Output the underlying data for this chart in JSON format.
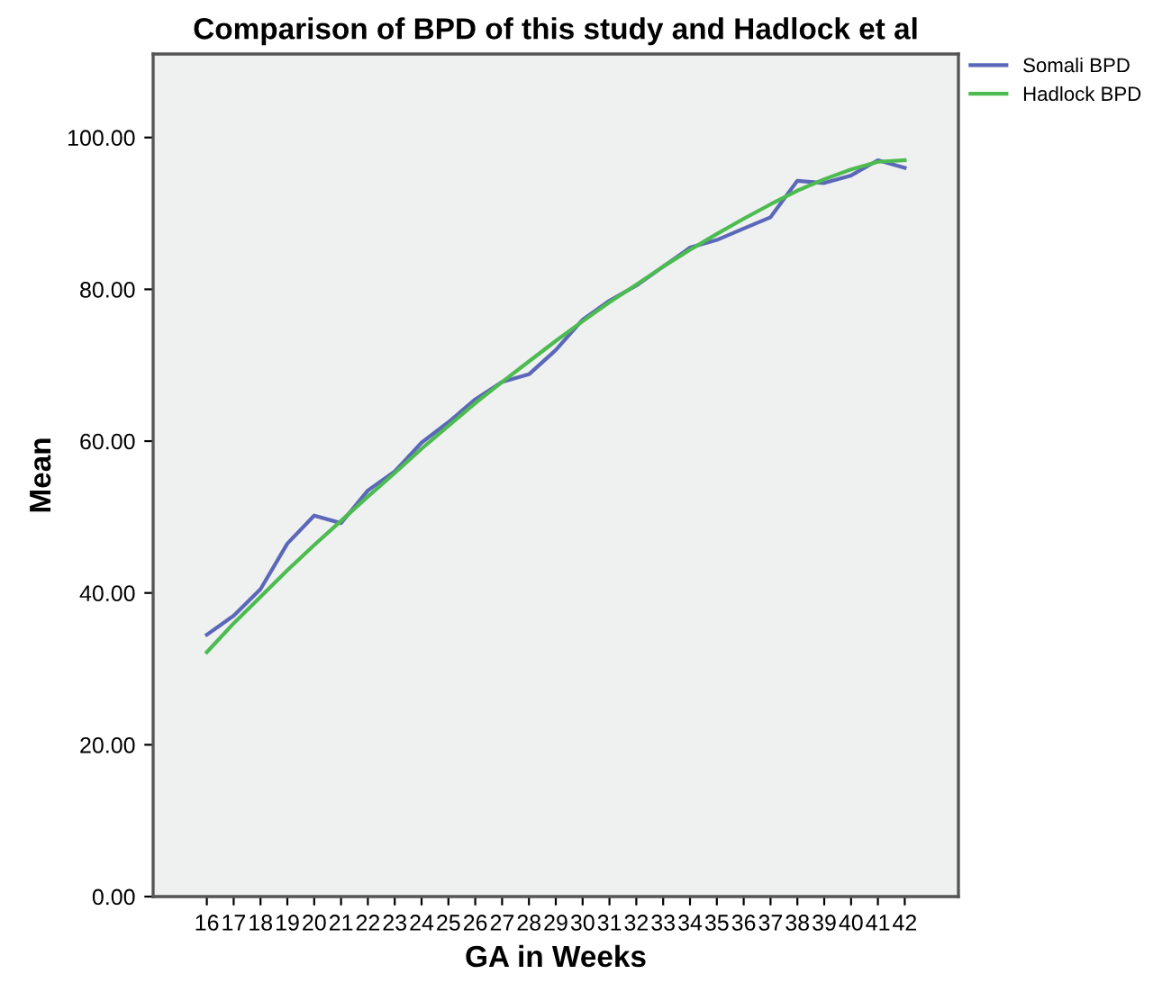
{
  "chart_data": {
    "type": "line",
    "title": "Comparison of BPD of this study and Hadlock et al",
    "xlabel": "GA in Weeks",
    "ylabel": "Mean",
    "categories": [
      "16",
      "17",
      "18",
      "19",
      "20",
      "21",
      "22",
      "23",
      "24",
      "25",
      "26",
      "27",
      "28",
      "29",
      "30",
      "31",
      "32",
      "33",
      "34",
      "35",
      "36",
      "37",
      "38",
      "39",
      "40",
      "41",
      "42"
    ],
    "series": [
      {
        "name": "Somali BPD",
        "color": "#5b67b8",
        "values": [
          34.5,
          37,
          40.5,
          46.5,
          50.2,
          49.2,
          53.5,
          56,
          59.8,
          62.5,
          65.5,
          67.8,
          68.8,
          72,
          76,
          78.5,
          80.5,
          83,
          85.5,
          86.5,
          88,
          89.5,
          94.3,
          94,
          95,
          97,
          96
        ]
      },
      {
        "name": "Hadlock BPD",
        "color": "#4cbb50",
        "values": [
          32.2,
          36,
          39.5,
          43,
          46.3,
          49.5,
          52.7,
          55.8,
          59,
          62,
          65,
          67.8,
          70.5,
          73.2,
          75.8,
          78.3,
          80.6,
          83,
          85.2,
          87.3,
          89.3,
          91.2,
          93,
          94.5,
          95.8,
          96.8,
          97
        ]
      }
    ],
    "ylim": [
      0,
      111
    ],
    "yticks": [
      {
        "value": 0,
        "label": "0.00"
      },
      {
        "value": 20,
        "label": "20.00"
      },
      {
        "value": 40,
        "label": "40.00"
      },
      {
        "value": 60,
        "label": "60.00"
      },
      {
        "value": 80,
        "label": "80.00"
      },
      {
        "value": 100,
        "label": "100.00"
      }
    ],
    "grid": false,
    "legend": "top right",
    "marker": "none",
    "line_style": "solid"
  }
}
